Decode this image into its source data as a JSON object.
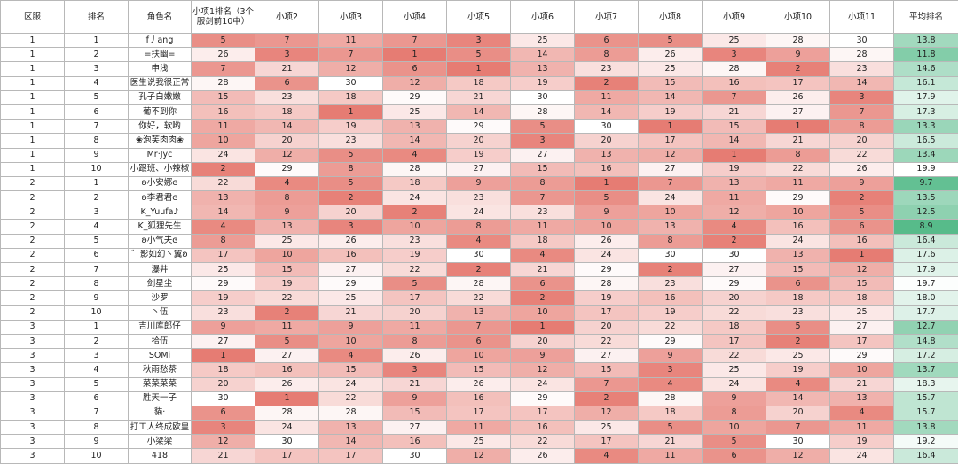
{
  "header": {
    "server": "区服",
    "rank": "排名",
    "name": "角色名",
    "items": [
      "小项1排名（3个服剑前10中）",
      "小项2",
      "小项3",
      "小项4",
      "小项5",
      "小项6",
      "小项7",
      "小项8",
      "小项9",
      "小项10",
      "小项11"
    ],
    "avg": "平均排名"
  },
  "colors": {
    "low_rank": "#e67c73",
    "high_rank": "#ffffff",
    "avg_best": "#57bb8a",
    "avg_worst": "#ffffff"
  },
  "rows": [
    {
      "server": "1",
      "rank": "1",
      "name": "f丿ang",
      "v": [
        "5",
        "7",
        "11",
        "7",
        "3",
        "25",
        "6",
        "5",
        "25",
        "28",
        "30"
      ],
      "avg": "13.8"
    },
    {
      "server": "1",
      "rank": "2",
      "name": "=扶幽=",
      "v": [
        "26",
        "3",
        "7",
        "1",
        "5",
        "14",
        "8",
        "26",
        "3",
        "9",
        "28"
      ],
      "avg": "11.8"
    },
    {
      "server": "1",
      "rank": "3",
      "name": "申浅",
      "v": [
        "7",
        "21",
        "12",
        "6",
        "1",
        "13",
        "23",
        "25",
        "28",
        "2",
        "23"
      ],
      "avg": "14.6"
    },
    {
      "server": "1",
      "rank": "4",
      "name": "医生说我很正常",
      "v": [
        "28",
        "6",
        "30",
        "12",
        "18",
        "19",
        "2",
        "15",
        "16",
        "17",
        "14"
      ],
      "avg": "16.1"
    },
    {
      "server": "1",
      "rank": "5",
      "name": "孔子白嫩嫩",
      "v": [
        "15",
        "23",
        "18",
        "29",
        "21",
        "30",
        "11",
        "14",
        "7",
        "26",
        "3"
      ],
      "avg": "17.9"
    },
    {
      "server": "1",
      "rank": "6",
      "name": "葡不到你",
      "v": [
        "16",
        "18",
        "1",
        "25",
        "14",
        "28",
        "14",
        "19",
        "21",
        "27",
        "7"
      ],
      "avg": "17.3"
    },
    {
      "server": "1",
      "rank": "7",
      "name": "你好，软哟",
      "v": [
        "11",
        "14",
        "19",
        "13",
        "29",
        "5",
        "30",
        "1",
        "15",
        "1",
        "8"
      ],
      "avg": "13.3"
    },
    {
      "server": "1",
      "rank": "8",
      "name": "❀泡芙肉肉❀",
      "v": [
        "10",
        "20",
        "23",
        "14",
        "20",
        "3",
        "20",
        "17",
        "14",
        "21",
        "20"
      ],
      "avg": "16.5"
    },
    {
      "server": "1",
      "rank": "9",
      "name": "Mr·Jyc",
      "v": [
        "24",
        "12",
        "5",
        "4",
        "19",
        "27",
        "13",
        "12",
        "1",
        "8",
        "22"
      ],
      "avg": "13.4"
    },
    {
      "server": "1",
      "rank": "10",
      "name": "小跟班、小辣椒",
      "v": [
        "2",
        "29",
        "8",
        "28",
        "27",
        "15",
        "16",
        "27",
        "19",
        "22",
        "26"
      ],
      "avg": "19.9"
    },
    {
      "server": "2",
      "rank": "1",
      "name": "ʚ小安娜ɞ",
      "v": [
        "22",
        "4",
        "5",
        "18",
        "9",
        "8",
        "1",
        "7",
        "13",
        "11",
        "9"
      ],
      "avg": "9.7"
    },
    {
      "server": "2",
      "rank": "2",
      "name": "ʚ李君君ɞ",
      "v": [
        "13",
        "8",
        "2",
        "24",
        "23",
        "7",
        "5",
        "24",
        "11",
        "29",
        "2"
      ],
      "avg": "13.5"
    },
    {
      "server": "2",
      "rank": "3",
      "name": "K_Yuufa♪",
      "v": [
        "14",
        "9",
        "20",
        "2",
        "24",
        "23",
        "9",
        "10",
        "12",
        "10",
        "5"
      ],
      "avg": "12.5"
    },
    {
      "server": "2",
      "rank": "4",
      "name": "K_狐狸先生",
      "v": [
        "4",
        "13",
        "3",
        "10",
        "8",
        "11",
        "10",
        "13",
        "4",
        "16",
        "6"
      ],
      "avg": "8.9"
    },
    {
      "server": "2",
      "rank": "5",
      "name": "ʚ小气夫ɞ",
      "v": [
        "8",
        "25",
        "26",
        "23",
        "4",
        "18",
        "26",
        "8",
        "2",
        "24",
        "16"
      ],
      "avg": "16.4"
    },
    {
      "server": "2",
      "rank": "6",
      "name": "゛影如幻丶翼ʚ",
      "v": [
        "17",
        "10",
        "16",
        "19",
        "30",
        "4",
        "24",
        "30",
        "30",
        "13",
        "1"
      ],
      "avg": "17.6"
    },
    {
      "server": "2",
      "rank": "7",
      "name": "瀑井",
      "v": [
        "25",
        "15",
        "27",
        "22",
        "2",
        "21",
        "29",
        "2",
        "27",
        "15",
        "12"
      ],
      "avg": "17.9"
    },
    {
      "server": "2",
      "rank": "8",
      "name": "剑星尘",
      "v": [
        "29",
        "19",
        "29",
        "5",
        "28",
        "6",
        "28",
        "23",
        "29",
        "6",
        "15"
      ],
      "avg": "19.7"
    },
    {
      "server": "2",
      "rank": "9",
      "name": "沙罗",
      "v": [
        "19",
        "22",
        "25",
        "17",
        "22",
        "2",
        "19",
        "16",
        "20",
        "18",
        "18"
      ],
      "avg": "18.0"
    },
    {
      "server": "2",
      "rank": "10",
      "name": "丶伍",
      "v": [
        "23",
        "2",
        "21",
        "20",
        "13",
        "10",
        "17",
        "19",
        "22",
        "23",
        "25"
      ],
      "avg": "17.7"
    },
    {
      "server": "3",
      "rank": "1",
      "name": "吉川库郎仔",
      "v": [
        "9",
        "11",
        "9",
        "11",
        "7",
        "1",
        "20",
        "22",
        "18",
        "5",
        "27"
      ],
      "avg": "12.7"
    },
    {
      "server": "3",
      "rank": "2",
      "name": "拾伍",
      "v": [
        "27",
        "5",
        "10",
        "8",
        "6",
        "20",
        "22",
        "29",
        "17",
        "2",
        "17"
      ],
      "avg": "14.8"
    },
    {
      "server": "3",
      "rank": "3",
      "name": "SOMi",
      "v": [
        "1",
        "27",
        "4",
        "26",
        "10",
        "9",
        "27",
        "9",
        "22",
        "25",
        "29"
      ],
      "avg": "17.2"
    },
    {
      "server": "3",
      "rank": "4",
      "name": "秋雨愁茶",
      "v": [
        "18",
        "16",
        "15",
        "3",
        "15",
        "12",
        "15",
        "3",
        "25",
        "19",
        "10"
      ],
      "avg": "13.7"
    },
    {
      "server": "3",
      "rank": "5",
      "name": "菜菜菜菜",
      "v": [
        "20",
        "26",
        "24",
        "21",
        "26",
        "24",
        "7",
        "4",
        "24",
        "4",
        "21"
      ],
      "avg": "18.3"
    },
    {
      "server": "3",
      "rank": "6",
      "name": "胜天一子",
      "v": [
        "30",
        "1",
        "22",
        "9",
        "16",
        "29",
        "2",
        "28",
        "9",
        "14",
        "13"
      ],
      "avg": "15.7"
    },
    {
      "server": "3",
      "rank": "7",
      "name": "貓·",
      "v": [
        "6",
        "28",
        "28",
        "15",
        "17",
        "17",
        "12",
        "18",
        "8",
        "20",
        "4"
      ],
      "avg": "15.7"
    },
    {
      "server": "3",
      "rank": "8",
      "name": "打工人终成欧皇",
      "v": [
        "3",
        "24",
        "13",
        "27",
        "11",
        "16",
        "25",
        "5",
        "10",
        "7",
        "11"
      ],
      "avg": "13.8"
    },
    {
      "server": "3",
      "rank": "9",
      "name": "小梁梁",
      "v": [
        "12",
        "30",
        "14",
        "16",
        "25",
        "22",
        "17",
        "21",
        "5",
        "30",
        "19"
      ],
      "avg": "19.2"
    },
    {
      "server": "3",
      "rank": "10",
      "name": "418",
      "v": [
        "21",
        "17",
        "17",
        "30",
        "12",
        "26",
        "4",
        "11",
        "6",
        "12",
        "24"
      ],
      "avg": "16.4"
    }
  ]
}
